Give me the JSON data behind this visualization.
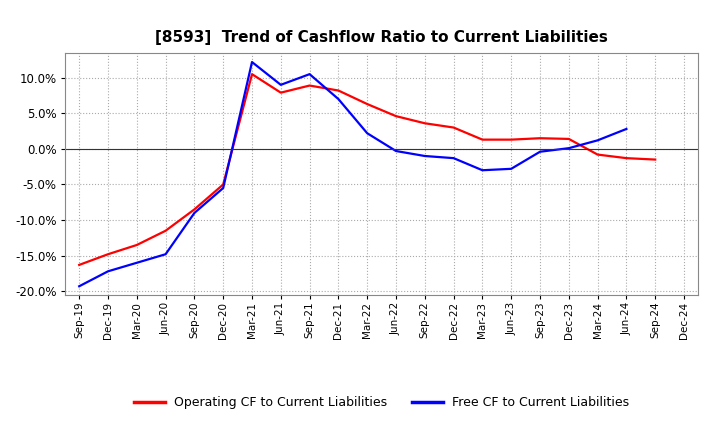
{
  "title": "[8593]  Trend of Cashflow Ratio to Current Liabilities",
  "title_fontsize": 11,
  "background_color": "#ffffff",
  "plot_bg_color": "#ffffff",
  "grid_color": "#aaaaaa",
  "legend_labels": [
    "Operating CF to Current Liabilities",
    "Free CF to Current Liabilities"
  ],
  "legend_colors": [
    "#ff0000",
    "#0000ff"
  ],
  "x_labels": [
    "Sep-19",
    "Dec-19",
    "Mar-20",
    "Jun-20",
    "Sep-20",
    "Dec-20",
    "Mar-21",
    "Jun-21",
    "Sep-21",
    "Dec-21",
    "Mar-22",
    "Jun-22",
    "Sep-22",
    "Dec-22",
    "Mar-23",
    "Jun-23",
    "Sep-23",
    "Dec-23",
    "Mar-24",
    "Jun-24",
    "Sep-24",
    "Dec-24"
  ],
  "operating_cf": [
    -0.163,
    -0.148,
    -0.135,
    -0.115,
    -0.085,
    -0.05,
    0.105,
    0.079,
    0.089,
    0.082,
    0.063,
    0.046,
    0.036,
    0.03,
    0.013,
    0.013,
    0.015,
    0.014,
    -0.008,
    -0.013,
    -0.015,
    null
  ],
  "free_cf": [
    -0.193,
    -0.172,
    -0.16,
    -0.148,
    -0.09,
    -0.055,
    0.122,
    0.09,
    0.105,
    0.07,
    0.022,
    -0.003,
    -0.01,
    -0.013,
    -0.03,
    -0.028,
    -0.004,
    0.001,
    0.012,
    0.028,
    null,
    null
  ],
  "ylim": [
    -0.205,
    0.135
  ],
  "yticks": [
    -0.2,
    -0.15,
    -0.1,
    -0.05,
    0.0,
    0.05,
    0.1
  ],
  "line_width": 1.6
}
